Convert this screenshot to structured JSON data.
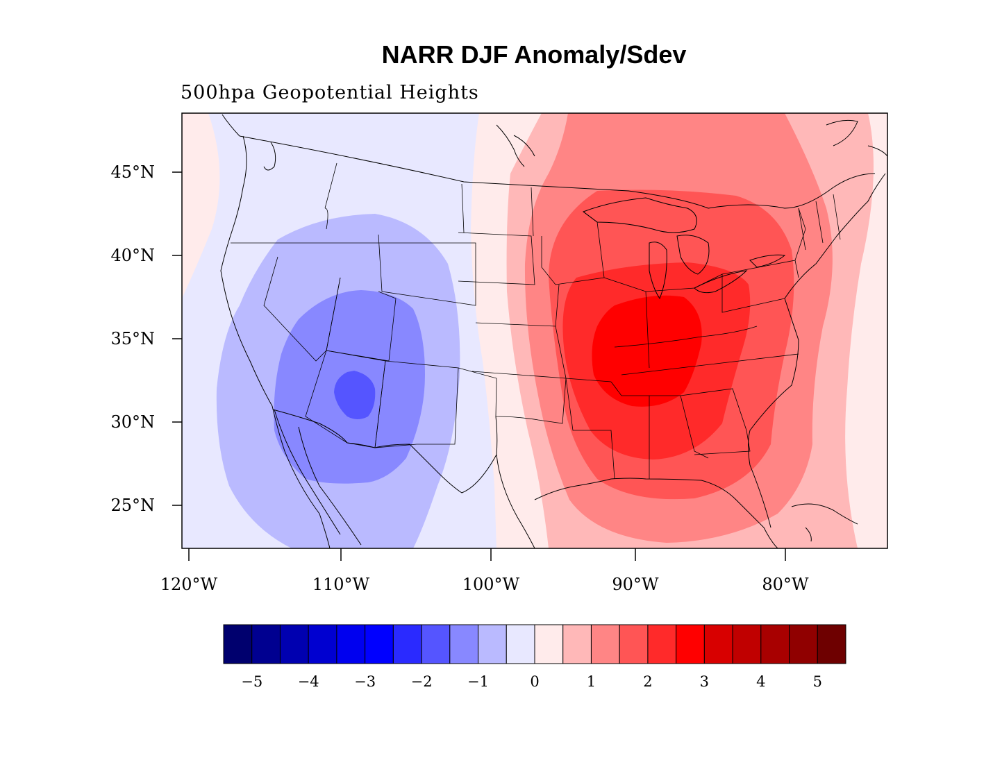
{
  "title": "NARR DJF Anomaly/Sdev",
  "subtitle": "500hpa Geopotential Heights",
  "axes": {
    "lat_ticks": [
      "45°N",
      "40°N",
      "35°N",
      "30°N",
      "25°N"
    ],
    "lon_ticks": [
      "120°W",
      "110°W",
      "100°W",
      "90°W",
      "80°W"
    ]
  },
  "colorbar": {
    "colors": [
      "#00006e",
      "#000090",
      "#0000b0",
      "#0000d0",
      "#0000ef",
      "#0000ff",
      "#2a2aff",
      "#5555ff",
      "#8888ff",
      "#babaff",
      "#e8e8ff",
      "#ffebeb",
      "#ffb8b8",
      "#ff8585",
      "#ff5555",
      "#ff2a2a",
      "#ff0000",
      "#d80000",
      "#c00000",
      "#a80000",
      "#900000",
      "#6e0000"
    ],
    "labels": [
      "−5",
      "−4",
      "−3",
      "−2",
      "−1",
      "0",
      "1",
      "2",
      "3",
      "4",
      "5"
    ]
  }
}
